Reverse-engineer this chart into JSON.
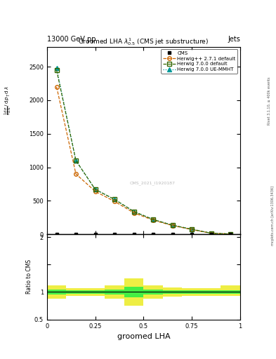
{
  "title": "Groomed LHA $\\lambda^{1}_{0.5}$ (CMS jet substructure)",
  "header_left": "13000 GeV pp",
  "header_right": "Jets",
  "xlabel": "groomed LHA",
  "ylabel_right_top": "Rivet 3.1.10, ≥ 400k events",
  "ylabel_right_bottom": "mcplots.cern.ch [arXiv:1306.3436]",
  "watermark": "CMS_2021_I1920187",
  "cms_x": [
    0.05,
    0.15,
    0.25,
    0.35,
    0.45,
    0.55,
    0.65,
    0.75,
    0.85,
    0.95
  ],
  "cms_y": [
    0.0,
    0.0,
    0.0,
    0.0,
    0.0,
    0.0,
    0.0,
    0.0,
    0.0,
    0.0
  ],
  "herwig271_x": [
    0.05,
    0.15,
    0.25,
    0.35,
    0.45,
    0.55,
    0.65,
    0.75,
    0.85,
    0.95
  ],
  "herwig271_y": [
    2200,
    900,
    640,
    490,
    320,
    210,
    130,
    70,
    15,
    4
  ],
  "herwig700_x": [
    0.05,
    0.15,
    0.25,
    0.35,
    0.45,
    0.55,
    0.65,
    0.75,
    0.85,
    0.95
  ],
  "herwig700_y": [
    2450,
    1100,
    670,
    520,
    340,
    220,
    135,
    75,
    16,
    4
  ],
  "herwig700ue_x": [
    0.05,
    0.15,
    0.25,
    0.35,
    0.45,
    0.55,
    0.65,
    0.75,
    0.85,
    0.95
  ],
  "herwig700ue_y": [
    2480,
    1100,
    670,
    520,
    340,
    220,
    135,
    75,
    16,
    4
  ],
  "band_x_edges": [
    0.0,
    0.1,
    0.2,
    0.3,
    0.4,
    0.5,
    0.6,
    0.7,
    0.8,
    0.9,
    1.0
  ],
  "band_yellow_low": [
    0.88,
    0.93,
    0.93,
    0.88,
    0.75,
    0.88,
    0.92,
    0.93,
    0.93,
    0.93
  ],
  "band_yellow_high": [
    1.12,
    1.07,
    1.07,
    1.12,
    1.25,
    1.12,
    1.08,
    1.07,
    1.07,
    1.12
  ],
  "band_green_low": [
    0.95,
    0.97,
    0.97,
    0.95,
    0.9,
    0.95,
    0.97,
    0.97,
    0.97,
    0.97
  ],
  "band_green_high": [
    1.05,
    1.03,
    1.03,
    1.05,
    1.1,
    1.05,
    1.03,
    1.03,
    1.03,
    1.03
  ],
  "color_herwig271": "#cc6600",
  "color_herwig700": "#336600",
  "color_herwig700ue": "#009999",
  "color_yellow": "#eeee44",
  "color_green": "#44ee44",
  "ylim_main": [
    0,
    2800
  ],
  "ylim_ratio": [
    0.5,
    2.05
  ],
  "xlim": [
    0.0,
    1.0
  ],
  "yticks_main": [
    0,
    500,
    1000,
    1500,
    2000,
    2500
  ],
  "ytick_labels_main": [
    "0",
    "500",
    "1000",
    "1500",
    "2000",
    "2500"
  ],
  "yticks_ratio": [
    0.5,
    1.0,
    1.5,
    2.0
  ],
  "ytick_labels_ratio": [
    "0.5",
    "1",
    "",
    "2"
  ]
}
